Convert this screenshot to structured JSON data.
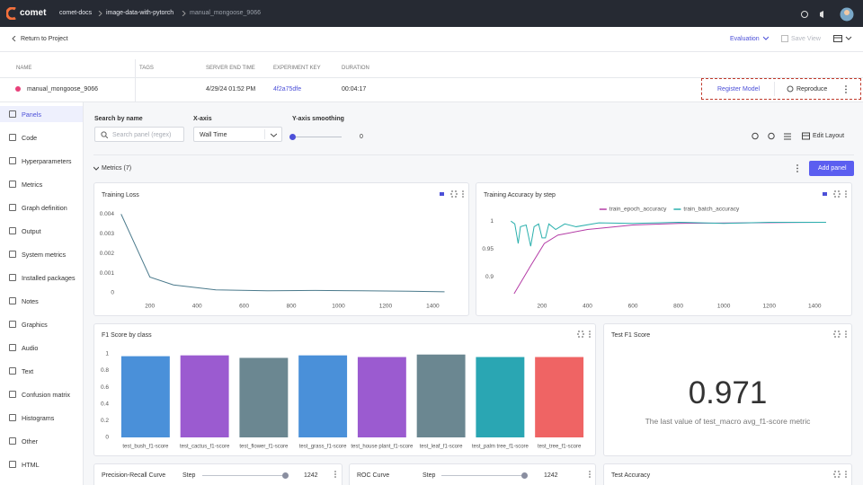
{
  "header": {
    "brand": "comet",
    "breadcrumbs": [
      "comet-docs",
      "image-data-with-pytorch",
      "manual_mongoose_9066"
    ]
  },
  "toolbar": {
    "back": "Return to Project",
    "view": "Evaluation",
    "save": "Save View"
  },
  "experiment_table": {
    "columns": [
      "NAME",
      "TAGS",
      "SERVER END TIME",
      "EXPERIMENT KEY",
      "DURATION"
    ],
    "row": {
      "name": "manual_mongoose_9066",
      "end_time": "4/29/24 01:52 PM",
      "key": "4f2a75dfe",
      "duration": "00:04:17"
    },
    "actions": [
      "Register Model",
      "Reproduce"
    ]
  },
  "sidebar": [
    "Panels",
    "Code",
    "Hyperparameters",
    "Metrics",
    "Graph definition",
    "Output",
    "System metrics",
    "Installed packages",
    "Notes",
    "Graphics",
    "Audio",
    "Text",
    "Confusion matrix",
    "Histograms",
    "Other",
    "HTML"
  ],
  "filters": {
    "search_label": "Search by name",
    "search_placeholder": "Search panel (regex)",
    "xaxis_label": "X-axis",
    "xaxis_value": "Wall Time",
    "smoothing_label": "Y-axis smoothing",
    "smoothing_value": 0,
    "edit_layout": "Edit Layout"
  },
  "section": {
    "title": "Metrics (7)",
    "add_panel": "Add panel"
  },
  "chart_data": [
    {
      "type": "line",
      "title": "Training Loss",
      "xlim": [
        60,
        1490
      ],
      "xticks": [
        200,
        400,
        600,
        800,
        1000,
        1200,
        1400
      ],
      "ylim": [
        0,
        0.0042
      ],
      "yticks": [
        0,
        0.001,
        0.002,
        0.003,
        0.004
      ],
      "series": [
        {
          "color": "#4b7a8c",
          "x": [
            78,
            200,
            300,
            480,
            700,
            900,
            1100,
            1300,
            1450
          ],
          "values": [
            0.004,
            0.0008,
            0.0004,
            0.00015,
            0.0001,
            0.00012,
            0.0001,
            8e-05,
            5e-05
          ]
        }
      ]
    },
    {
      "type": "line",
      "title": "Training Accuracy by step",
      "legend": "top",
      "xlim": [
        30,
        1490
      ],
      "xticks": [
        200,
        400,
        600,
        800,
        1000,
        1200,
        1400
      ],
      "ylim": [
        0.87,
        1.01
      ],
      "yticks": [
        0.9,
        0.95,
        1
      ],
      "series": [
        {
          "name": "train_epoch_accuracy",
          "color": "#b43ca6",
          "x": [
            77,
            150,
            210,
            270,
            400,
            600,
            800,
            1100,
            1450
          ],
          "values": [
            0.87,
            0.92,
            0.96,
            0.975,
            0.985,
            0.993,
            0.996,
            0.997,
            0.998
          ]
        },
        {
          "name": "train_batch_accuracy",
          "color": "#2bb0ad",
          "x": [
            63,
            80,
            95,
            105,
            130,
            150,
            165,
            185,
            200,
            215,
            230,
            260,
            300,
            350,
            450,
            600,
            800,
            1000,
            1200,
            1450
          ],
          "values": [
            1,
            0.995,
            0.96,
            0.99,
            0.993,
            0.955,
            0.99,
            0.995,
            0.97,
            0.97,
            0.995,
            0.985,
            0.995,
            0.99,
            0.997,
            0.996,
            0.998,
            0.996,
            0.998,
            0.998
          ]
        }
      ]
    },
    {
      "type": "bar",
      "title": "F1 Score by class",
      "categories": [
        "test_bush_f1-score",
        "test_cactus_f1-score",
        "test_flower_f1-score",
        "test_grass_f1-score",
        "test_house plant_f1-score",
        "test_leaf_f1-score",
        "test_palm tree_f1-score",
        "test_tree_f1-score"
      ],
      "values": [
        0.97,
        0.98,
        0.95,
        0.98,
        0.96,
        0.99,
        0.96,
        0.96
      ],
      "colors": [
        "#4a90d9",
        "#9b5bd0",
        "#6b8791",
        "#4a90d9",
        "#9b5bd0",
        "#6b8791",
        "#2aa6b3",
        "#ef6464"
      ],
      "ylim": [
        0,
        1.03
      ],
      "yticks": [
        0,
        0.2,
        0.4,
        0.6,
        0.8,
        1
      ]
    }
  ],
  "test_f1": {
    "title": "Test F1 Score",
    "value": 0.971,
    "caption": "The last value of test_macro avg_f1-score metric"
  },
  "bottom_panels": [
    {
      "title": "Precision-Recall Curve",
      "step_label": "Step",
      "step": 1242
    },
    {
      "title": "ROC Curve",
      "step_label": "Step",
      "step": 1242
    },
    {
      "title": "Test Accuracy"
    }
  ]
}
